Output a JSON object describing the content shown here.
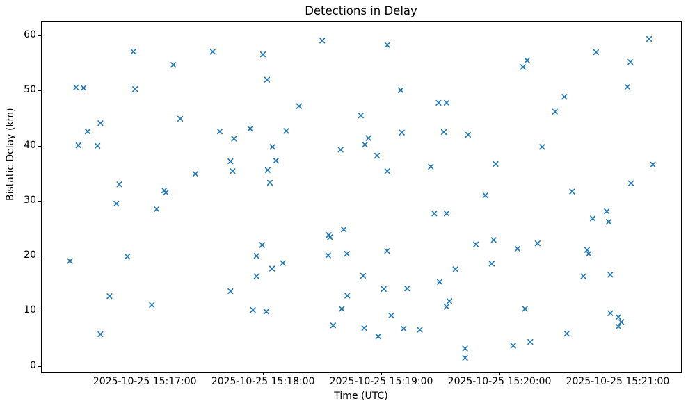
{
  "chart_data": {
    "type": "scatter",
    "title": "Detections in Delay",
    "xlabel": "Time (UTC)",
    "ylabel": "Bistatic Delay (km)",
    "marker": "x",
    "marker_color": "#1f77b4",
    "grid": false,
    "legend": "none",
    "x_unit": "seconds after 2025-10-25 15:16:00 UTC",
    "xlim": [
      7.3,
      331.8
    ],
    "ylim": [
      -1.05,
      62.65
    ],
    "x_ticks": [
      {
        "v": 60,
        "label": "2025-10-25 15:17:00"
      },
      {
        "v": 120,
        "label": "2025-10-25 15:18:00"
      },
      {
        "v": 180,
        "label": "2025-10-25 15:19:00"
      },
      {
        "v": 240,
        "label": "2025-10-25 15:20:00"
      },
      {
        "v": 300,
        "label": "2025-10-25 15:21:00"
      }
    ],
    "y_ticks": [
      {
        "v": 0,
        "label": "0"
      },
      {
        "v": 10,
        "label": "10"
      },
      {
        "v": 20,
        "label": "20"
      },
      {
        "v": 30,
        "label": "30"
      },
      {
        "v": 40,
        "label": "40"
      },
      {
        "v": 50,
        "label": "50"
      },
      {
        "v": 60,
        "label": "60"
      }
    ],
    "points": [
      [
        21.6,
        19.2
      ],
      [
        24.7,
        50.7
      ],
      [
        25.9,
        40.2
      ],
      [
        28.5,
        50.6
      ],
      [
        30.6,
        42.7
      ],
      [
        35.6,
        40.1
      ],
      [
        37.1,
        44.2
      ],
      [
        37.1,
        5.9
      ],
      [
        41.7,
        12.8
      ],
      [
        45.2,
        29.6
      ],
      [
        46.7,
        33.1
      ],
      [
        50.8,
        20.0
      ],
      [
        53.8,
        57.2
      ],
      [
        54.7,
        50.4
      ],
      [
        63.2,
        11.2
      ],
      [
        65.6,
        28.6
      ],
      [
        69.5,
        32.0
      ],
      [
        70.3,
        31.6
      ],
      [
        74.1,
        54.8
      ],
      [
        77.6,
        45.0
      ],
      [
        85.3,
        35.0
      ],
      [
        94.1,
        57.2
      ],
      [
        97.7,
        42.7
      ],
      [
        103.1,
        37.3
      ],
      [
        103.1,
        13.7
      ],
      [
        104.2,
        35.5
      ],
      [
        104.9,
        41.4
      ],
      [
        113.1,
        43.2
      ],
      [
        114.5,
        10.3
      ],
      [
        116.3,
        20.1
      ],
      [
        116.3,
        16.4
      ],
      [
        119.2,
        22.1
      ],
      [
        119.6,
        56.7
      ],
      [
        121.3,
        10.0
      ],
      [
        121.7,
        52.1
      ],
      [
        122.0,
        35.7
      ],
      [
        123.1,
        33.4
      ],
      [
        124.2,
        17.8
      ],
      [
        124.4,
        39.9
      ],
      [
        126.2,
        37.4
      ],
      [
        129.7,
        18.8
      ],
      [
        131.4,
        42.8
      ],
      [
        137.9,
        47.3
      ],
      [
        149.7,
        59.2
      ],
      [
        152.7,
        20.2
      ],
      [
        153.0,
        23.9
      ],
      [
        153.6,
        23.5
      ],
      [
        155.2,
        7.5
      ],
      [
        159.0,
        39.4
      ],
      [
        159.6,
        10.5
      ],
      [
        160.6,
        24.9
      ],
      [
        162.2,
        20.5
      ],
      [
        162.4,
        12.9
      ],
      [
        169.3,
        45.6
      ],
      [
        170.4,
        16.5
      ],
      [
        171.0,
        7.0
      ],
      [
        171.3,
        40.3
      ],
      [
        173.1,
        41.5
      ],
      [
        177.5,
        38.3
      ],
      [
        178.1,
        5.5
      ],
      [
        180.9,
        14.1
      ],
      [
        182.6,
        21.0
      ],
      [
        182.7,
        58.4
      ],
      [
        182.7,
        35.5
      ],
      [
        184.7,
        9.3
      ],
      [
        189.5,
        50.2
      ],
      [
        190.1,
        42.5
      ],
      [
        191.0,
        6.9
      ],
      [
        192.8,
        14.2
      ],
      [
        199.2,
        6.7
      ],
      [
        204.8,
        36.3
      ],
      [
        206.6,
        27.8
      ],
      [
        208.7,
        47.9
      ],
      [
        209.3,
        15.4
      ],
      [
        211.4,
        42.6
      ],
      [
        212.8,
        47.9
      ],
      [
        212.8,
        27.8
      ],
      [
        212.8,
        10.9
      ],
      [
        214.2,
        11.9
      ],
      [
        217.3,
        17.7
      ],
      [
        222.2,
        3.3
      ],
      [
        222.2,
        1.6
      ],
      [
        223.7,
        42.1
      ],
      [
        227.7,
        22.2
      ],
      [
        232.5,
        31.1
      ],
      [
        235.7,
        18.7
      ],
      [
        236.7,
        23.0
      ],
      [
        237.7,
        36.8
      ],
      [
        246.6,
        3.8
      ],
      [
        248.8,
        21.4
      ],
      [
        251.6,
        54.4
      ],
      [
        252.6,
        10.5
      ],
      [
        253.7,
        55.6
      ],
      [
        255.3,
        4.5
      ],
      [
        259.0,
        22.4
      ],
      [
        261.3,
        39.9
      ],
      [
        267.8,
        46.3
      ],
      [
        272.6,
        49.0
      ],
      [
        273.8,
        6.0
      ],
      [
        276.5,
        31.8
      ],
      [
        282.2,
        16.4
      ],
      [
        284.1,
        21.2
      ],
      [
        284.9,
        20.5
      ],
      [
        287.0,
        26.9
      ],
      [
        288.7,
        57.1
      ],
      [
        294.1,
        28.2
      ],
      [
        295.1,
        26.3
      ],
      [
        295.9,
        16.7
      ],
      [
        295.9,
        9.7
      ],
      [
        300.0,
        9.0
      ],
      [
        300.0,
        7.3
      ],
      [
        301.5,
        8.1
      ],
      [
        304.6,
        50.8
      ],
      [
        306.1,
        55.3
      ],
      [
        306.4,
        33.3
      ],
      [
        315.6,
        59.5
      ],
      [
        317.5,
        36.7
      ]
    ]
  }
}
